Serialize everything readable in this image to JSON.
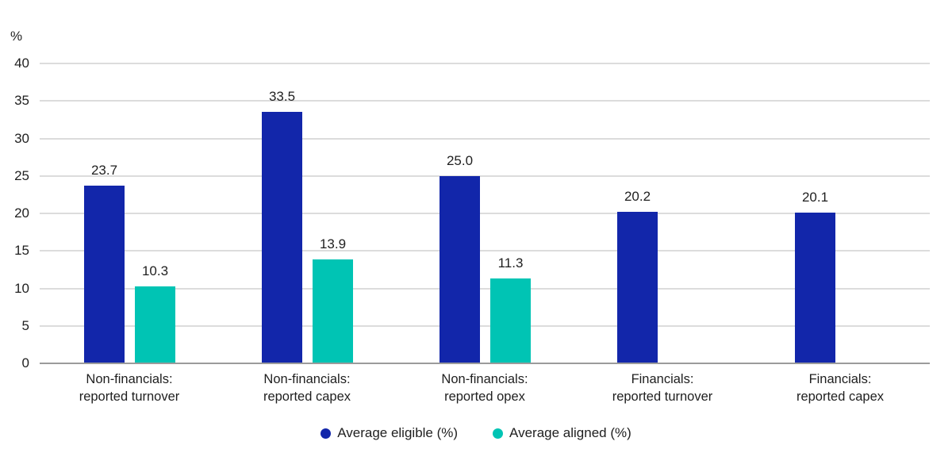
{
  "chart_data": {
    "type": "bar",
    "title": "",
    "xlabel": "",
    "ylabel": "%",
    "ylim": [
      0,
      40
    ],
    "ytick_step": 5,
    "grid": true,
    "legend_position": "bottom",
    "value_label_decimals": 1,
    "categories": [
      "Non-financials:\nreported turnover",
      "Non-financials:\nreported capex",
      "Non-financials:\nreported opex",
      "Financials:\nreported turnover",
      "Financials:\nreported capex"
    ],
    "series": [
      {
        "name": "Average eligible (%)",
        "color": "#1226aa",
        "values": [
          23.7,
          33.5,
          25.0,
          20.2,
          20.1
        ]
      },
      {
        "name": "Average aligned (%)",
        "color": "#00c4b4",
        "values": [
          10.3,
          13.9,
          11.3,
          null,
          null
        ]
      }
    ],
    "colors": {
      "gridline": "#dcdcdc",
      "axis_baseline": "#9b9b9b",
      "text": "#1f1f1f",
      "background": "#ffffff"
    }
  }
}
